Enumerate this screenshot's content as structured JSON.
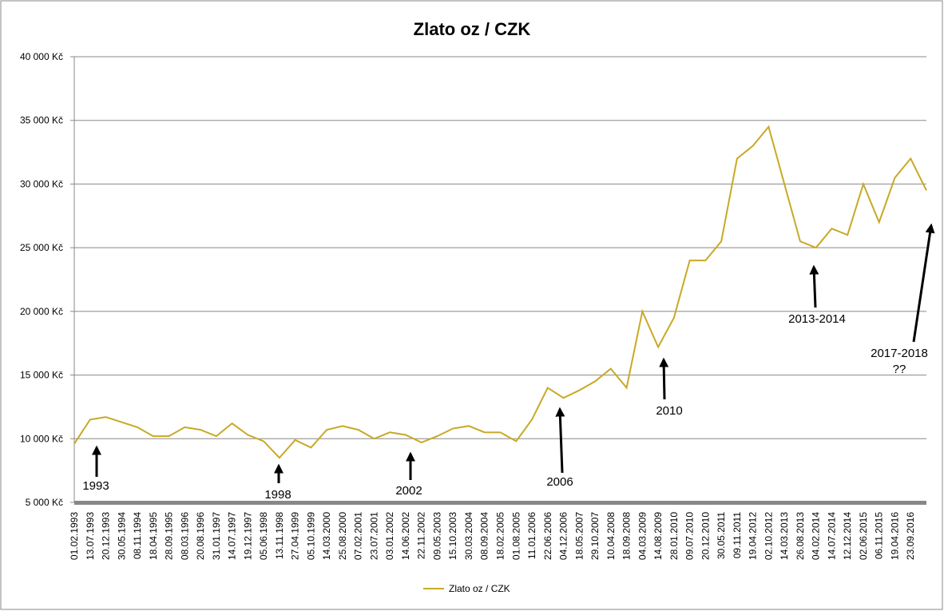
{
  "chart_data": {
    "type": "line",
    "title": "Zlato oz / CZK",
    "categories": [
      "01.02.1993",
      "13.07.1993",
      "20.12.1993",
      "30.05.1994",
      "08.11.1994",
      "18.04.1995",
      "28.09.1995",
      "08.03.1996",
      "20.08.1996",
      "31.01.1997",
      "14.07.1997",
      "19.12.1997",
      "05.06.1998",
      "13.11.1998",
      "27.04.1999",
      "05.10.1999",
      "14.03.2000",
      "25.08.2000",
      "07.02.2001",
      "23.07.2001",
      "03.01.2002",
      "14.06.2002",
      "22.11.2002",
      "09.05.2003",
      "15.10.2003",
      "30.03.2004",
      "08.09.2004",
      "18.02.2005",
      "01.08.2005",
      "11.01.2006",
      "22.06.2006",
      "04.12.2006",
      "18.05.2007",
      "29.10.2007",
      "10.04.2008",
      "18.09.2008",
      "04.03.2009",
      "14.08.2009",
      "28.01.2010",
      "09.07.2010",
      "20.12.2010",
      "30.05.2011",
      "09.11.2011",
      "19.04.2012",
      "02.10.2012",
      "14.03.2013",
      "26.08.2013",
      "04.02.2014",
      "14.07.2014",
      "12.12.2014",
      "02.06.2015",
      "06.11.2015",
      "19.04.2016",
      "23.09.2016",
      null
    ],
    "series": [
      {
        "name": "Zlato oz / CZK",
        "color": "#c8a925",
        "values": [
          9600,
          11500,
          11700,
          11300,
          10900,
          10200,
          10200,
          10900,
          10700,
          10200,
          11200,
          10300,
          9800,
          8500,
          9900,
          9300,
          10700,
          11000,
          10700,
          10000,
          10500,
          10300,
          9700,
          10200,
          10800,
          11000,
          10500,
          10500,
          9800,
          11500,
          14000,
          13200,
          13800,
          14500,
          15500,
          14000,
          20000,
          17200,
          19500,
          24000,
          24000,
          25500,
          32000,
          33000,
          34500,
          30000,
          25500,
          25000,
          26500,
          26000,
          30000,
          27000,
          30500,
          32000,
          29500
        ]
      }
    ],
    "ylim": [
      5000,
      40000
    ],
    "yticks": [
      {
        "value": 5000,
        "label": "5 000 Kč"
      },
      {
        "value": 10000,
        "label": "10 000 Kč"
      },
      {
        "value": 15000,
        "label": "15 000 Kč"
      },
      {
        "value": 20000,
        "label": "20 000 Kč"
      },
      {
        "value": 25000,
        "label": "25 000 Kč"
      },
      {
        "value": 30000,
        "label": "30 000 Kč"
      },
      {
        "value": 35000,
        "label": "35 000 Kč"
      },
      {
        "value": 40000,
        "label": "40 000 Kč"
      }
    ],
    "grid": true,
    "legend": "bottom",
    "annotations": [
      "1993",
      "1998",
      "2002",
      "2006",
      "2010",
      "2013-2014",
      "2017-2018",
      "??"
    ]
  }
}
